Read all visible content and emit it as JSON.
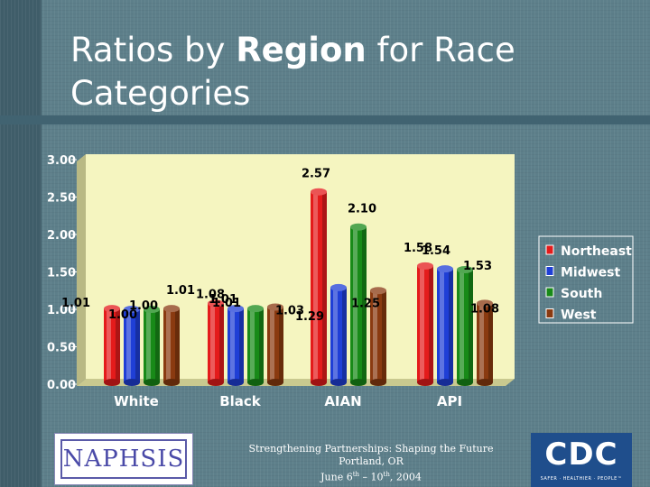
{
  "slide": {
    "title_pre": "Ratios by ",
    "title_bold": "Region",
    "title_post": " for Race Categories",
    "footer_line1": "Strengthening Partnerships: Shaping the Future",
    "footer_line2": "Portland, OR",
    "footer_line3_a": "June 6",
    "footer_line3_b": "th",
    "footer_line3_c": " – 10",
    "footer_line3_d": "th",
    "footer_line3_e": ", 2004",
    "left_logo_text": "NAPHSIS",
    "right_logo_text": "CDC",
    "right_logo_tagline": "SAFER · HEALTHIER · PEOPLE™"
  },
  "chart_data": {
    "type": "bar",
    "title": "",
    "xlabel": "",
    "ylabel": "",
    "categories": [
      "White",
      "Black",
      "AIAN",
      "API"
    ],
    "series": [
      {
        "name": "Northeast",
        "color": "#e41b1b",
        "values": [
          1.01,
          1.08,
          2.57,
          1.58
        ]
      },
      {
        "name": "Midwest",
        "color": "#1f3fd6",
        "values": [
          1.0,
          1.01,
          1.29,
          1.54
        ]
      },
      {
        "name": "South",
        "color": "#188a18",
        "values": [
          1.0,
          1.01,
          2.1,
          1.53
        ]
      },
      {
        "name": "West",
        "color": "#8a3a10",
        "values": [
          1.01,
          1.03,
          1.25,
          1.08
        ]
      }
    ],
    "value_labels": [
      [
        "1.01",
        "1.08",
        "2.57",
        "1.58"
      ],
      [
        "1.00",
        "1.01",
        "1.29",
        "1.54"
      ],
      [
        "1.00",
        "1.01",
        "2.10",
        "1.53"
      ],
      [
        "1.01",
        "1.03",
        "1.25",
        "1.08"
      ]
    ],
    "yticks": [
      "0.00",
      "0.50",
      "1.00",
      "1.50",
      "2.00",
      "2.50",
      "3.00"
    ],
    "ylim": [
      0,
      3
    ],
    "grid": false,
    "legend_position": "right",
    "plot_background": "#f5f5c0"
  }
}
